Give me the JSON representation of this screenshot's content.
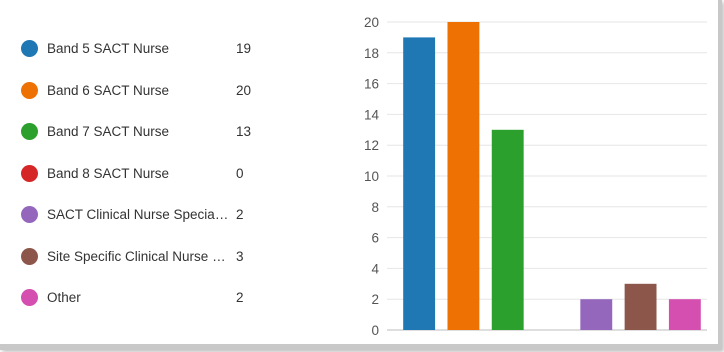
{
  "chart_data": {
    "type": "bar",
    "categories": [
      "Band 5 SACT Nurse",
      "Band 6 SACT Nurse",
      "Band 7 SACT Nurse",
      "Band 8 SACT Nurse",
      "SACT Clinical Nurse Specialist",
      "Site Specific Clinical Nurse Speci...",
      "Other"
    ],
    "values": [
      19,
      20,
      13,
      0,
      2,
      3,
      2
    ],
    "colors": [
      "#1f77b4",
      "#ee7203",
      "#2ca02c",
      "#d62728",
      "#9467bd",
      "#8c564b",
      "#d44fb0"
    ],
    "ylim": [
      0,
      20
    ],
    "yticks": [
      0,
      2,
      4,
      6,
      8,
      10,
      12,
      14,
      16,
      18,
      20
    ],
    "grid": true,
    "legend_position": "left"
  }
}
